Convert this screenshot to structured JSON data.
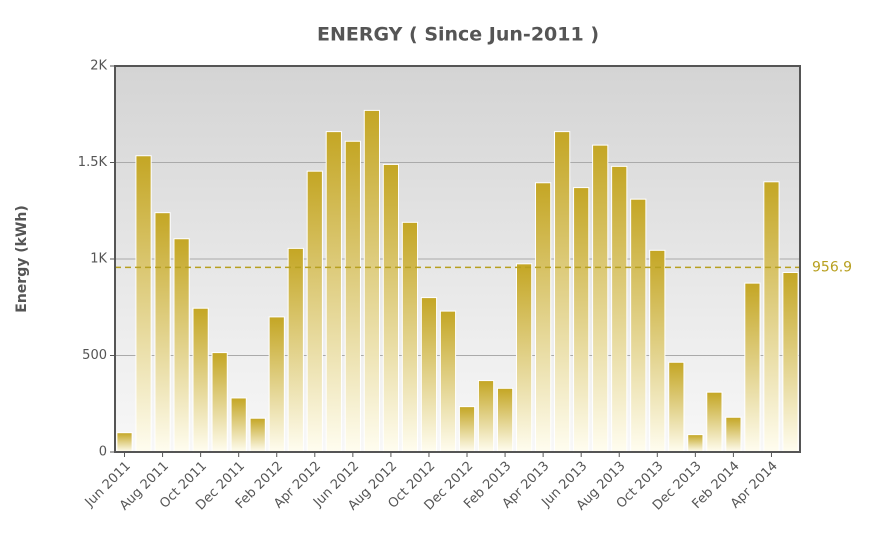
{
  "chart_data": {
    "type": "bar",
    "title": "ENERGY ( Since Jun-2011 )",
    "y_label": "Energy (kWh)",
    "categories": [
      "Jun 2011",
      null,
      "Aug 2011",
      null,
      "Oct 2011",
      null,
      "Dec 2011",
      null,
      "Feb 2012",
      null,
      "Apr 2012",
      null,
      "Jun 2012",
      null,
      "Aug 2012",
      null,
      "Oct 2012",
      null,
      "Dec 2012",
      null,
      "Feb 2013",
      null,
      "Apr 2013",
      null,
      "Jun 2013",
      null,
      "Aug 2013",
      null,
      "Oct 2013",
      null,
      "Dec 2013",
      null,
      "Feb 2014",
      null,
      "Apr 2014",
      null
    ],
    "values": [
      100,
      1535,
      1240,
      1105,
      745,
      515,
      280,
      175,
      700,
      1055,
      1455,
      1660,
      1610,
      1770,
      1490,
      1190,
      800,
      730,
      235,
      370,
      330,
      975,
      1395,
      1660,
      1370,
      1590,
      1480,
      1310,
      1045,
      465,
      90,
      310,
      180,
      875,
      1400,
      930
    ],
    "color": "#c4a624",
    "ylim": [
      0,
      2000
    ],
    "yticks": [
      0,
      500,
      {
        "value": 1000,
        "label": "1K"
      },
      {
        "value": 1500,
        "label": "1.5K"
      },
      {
        "value": 2000,
        "label": "2K"
      }
    ],
    "grid": true,
    "reference_value": 956.9,
    "reference_color": "#b8a020"
  }
}
